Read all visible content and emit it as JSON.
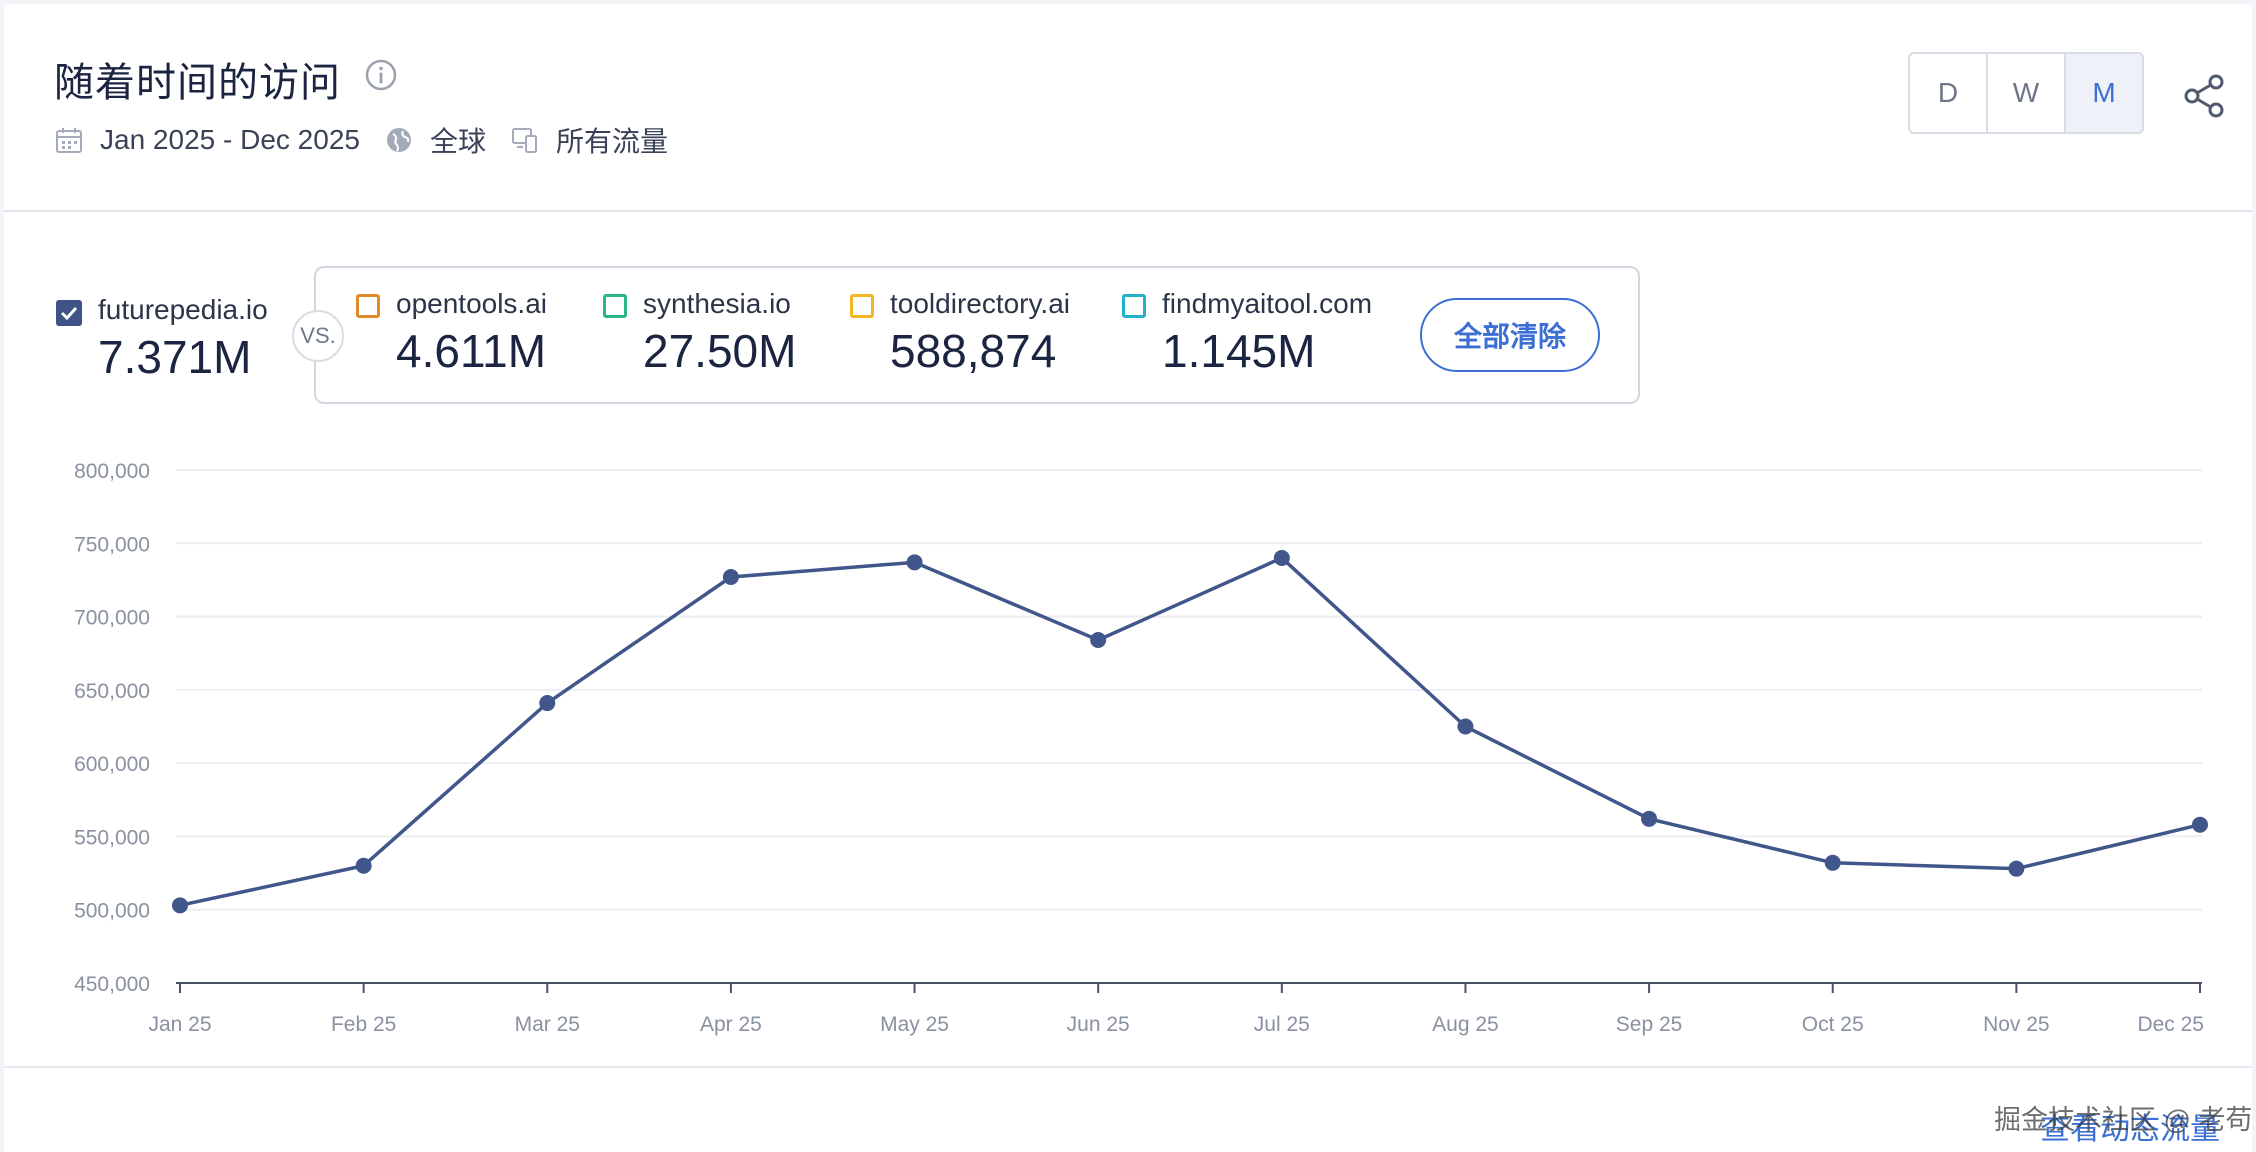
{
  "header": {
    "title": "随着时间的访问",
    "date_range": "Jan 2025 - Dec 2025",
    "region": "全球",
    "traffic": "所有流量",
    "icons": [
      "info-icon",
      "calendar-icon",
      "globe-icon",
      "devices-icon",
      "share-icon"
    ]
  },
  "period": {
    "options": [
      "D",
      "W",
      "M"
    ],
    "selected": "M"
  },
  "main_site": {
    "name": "futurepedia.io",
    "value": "7.371M",
    "color": "#3f5389",
    "checked": true
  },
  "vs_label": "VS.",
  "competitors": [
    {
      "name": "opentools.ai",
      "value": "4.611M",
      "color": "#e08a2a"
    },
    {
      "name": "synthesia.io",
      "value": "27.50M",
      "color": "#2bb58d"
    },
    {
      "name": "tooldirectory.ai",
      "value": "588,874",
      "color": "#f2b51f"
    },
    {
      "name": "findmyaitool.com",
      "value": "1.145M",
      "color": "#21b3c7"
    }
  ],
  "clear_all": "全部清除",
  "chart_data": {
    "type": "line",
    "categories": [
      "Jan 25",
      "Feb 25",
      "Mar 25",
      "Apr 25",
      "May 25",
      "Jun 25",
      "Jul 25",
      "Aug 25",
      "Sep 25",
      "Oct 25",
      "Nov 25",
      "Dec 25"
    ],
    "series": [
      {
        "name": "futurepedia.io",
        "color": "#41568a",
        "values": [
          503000,
          530000,
          641000,
          727000,
          737000,
          684000,
          740000,
          625000,
          562000,
          532000,
          528000,
          558000
        ]
      }
    ],
    "y_ticks": [
      450000,
      500000,
      550000,
      600000,
      650000,
      700000,
      750000,
      800000
    ],
    "y_tick_labels": [
      "450,000",
      "500,000",
      "550,000",
      "600,000",
      "650,000",
      "700,000",
      "750,000",
      "800,000"
    ],
    "ylim": [
      450000,
      800000
    ],
    "grid": true,
    "legend": "none"
  },
  "footer": {
    "link": "查看动态流量",
    "watermark": "掘金技术社区 @ 老苟"
  }
}
